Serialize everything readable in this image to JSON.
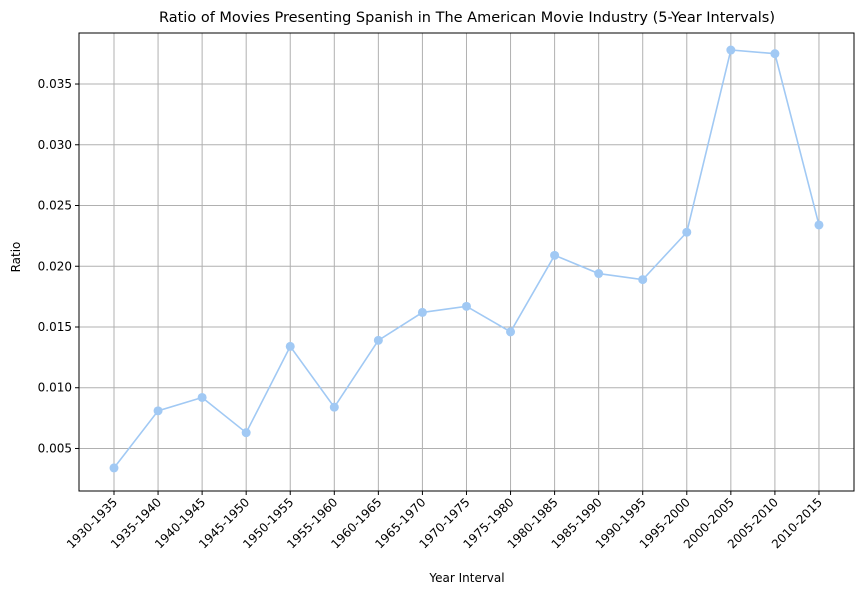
{
  "chart_data": {
    "type": "line",
    "title": "Ratio of Movies Presenting Spanish in The American Movie Industry (5-Year Intervals)",
    "xlabel": "Year Interval",
    "ylabel": "Ratio",
    "categories": [
      "1930-1935",
      "1935-1940",
      "1940-1945",
      "1945-1950",
      "1950-1955",
      "1955-1960",
      "1960-1965",
      "1965-1970",
      "1970-1975",
      "1975-1980",
      "1980-1985",
      "1985-1990",
      "1990-1995",
      "1995-2000",
      "2000-2005",
      "2005-2010",
      "2010-2015"
    ],
    "series": [
      {
        "values": [
          0.0034,
          0.0081,
          0.0092,
          0.0063,
          0.0134,
          0.0084,
          0.0139,
          0.0162,
          0.0167,
          0.0146,
          0.0209,
          0.0194,
          0.0189,
          0.0228,
          0.0378,
          0.0375,
          0.0234
        ],
        "color": "#a1c9f4",
        "marker": "circle"
      }
    ],
    "ylim": [
      0.0015,
      0.0392
    ],
    "yticks": [
      0.005,
      0.01,
      0.015,
      0.02,
      0.025,
      0.03,
      0.035
    ],
    "ytick_labels": [
      "0.005",
      "0.010",
      "0.015",
      "0.020",
      "0.025",
      "0.030",
      "0.035"
    ],
    "grid": true,
    "legend": "none"
  }
}
